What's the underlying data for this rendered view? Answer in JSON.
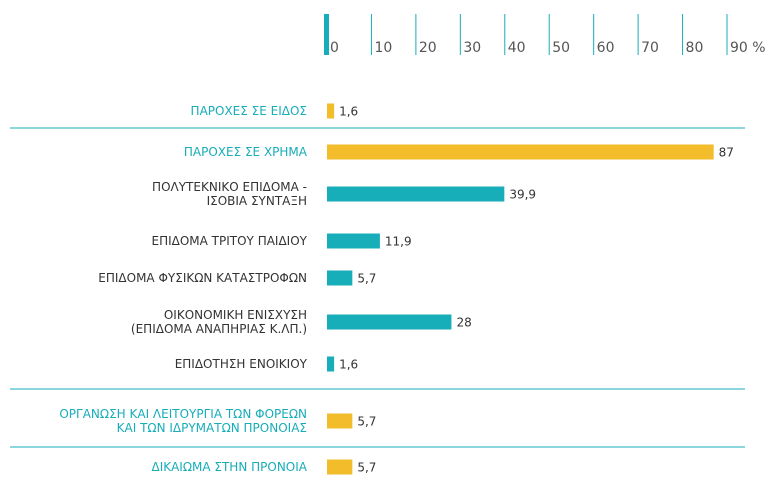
{
  "chart_data": {
    "type": "barh",
    "categories": [
      "ΠΑΡΟΧΕΣ ΣΕ ΕΙΔΟΣ",
      "ΠΑΡΟΧΕΣ ΣΕ ΧΡΗΜΑ",
      "ΠΟΛΥΤΕΚΝΙΚΟ ΕΠΙΔΟΜΑ -\nΙΣΟΒΙΑ ΣΥΝΤΑΞΗ",
      "ΕΠΙΔΟΜΑ ΤΡΙΤΟΥ ΠΑΙΔΙΟΥ",
      "ΕΠΙΔΟΜΑ ΦΥΣΙΚΩΝ ΚΑΤΑΣΤΡΟΦΩΝ",
      "ΟΙΚΟΝΟΜΙΚΗ ΕΝΙΣΧΥΣΗ\n(ΕΠΙΔΟΜΑ ΑΝΑΠΗΡΙΑΣ Κ.ΛΠ.)",
      "ΕΠΙΔΟΤΗΣΗ ΕΝΟΙΚΙΟΥ",
      "ΟΡΓΑΝΩΣΗ ΚΑΙ ΛΕΙΤΟΥΡΓΙΑ ΤΩΝ ΦΟΡΕΩΝ\nΚΑΙ ΤΩΝ ΙΔΡΥΜΑΤΩΝ ΠΡΟΝΟΙΑΣ",
      "ΔΙΚΑΙΩΜΑ ΣΤΗΝ ΠΡΟΝΟΙΑ"
    ],
    "values": [
      1.6,
      87,
      39.9,
      11.9,
      5.7,
      28,
      1.6,
      5.7,
      5.7
    ],
    "value_labels": [
      "1,6",
      "87",
      "39,9",
      "11,9",
      "5,7",
      "28",
      "1,6",
      "5,7",
      "5,7"
    ],
    "colors": [
      "#f2bc2a",
      "#f2bc2a",
      "#17adb9",
      "#17adb9",
      "#17adb9",
      "#17adb9",
      "#17adb9",
      "#f2bc2a",
      "#f2bc2a"
    ],
    "xlim": [
      0,
      90
    ],
    "xticks": [
      0,
      10,
      20,
      30,
      40,
      50,
      60,
      70,
      80,
      {
        "value": 90,
        "label": "90 %"
      }
    ]
  }
}
